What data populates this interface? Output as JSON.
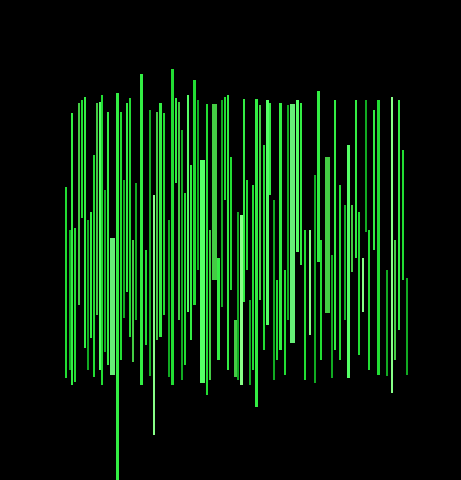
{
  "colors": {
    "background": "#000000",
    "palette": [
      "#22dd33",
      "#33ee44",
      "#11aa22",
      "#55ff66",
      "#44cc44",
      "#66ee77",
      "#88ff88",
      "#1bc12b"
    ]
  }
}
